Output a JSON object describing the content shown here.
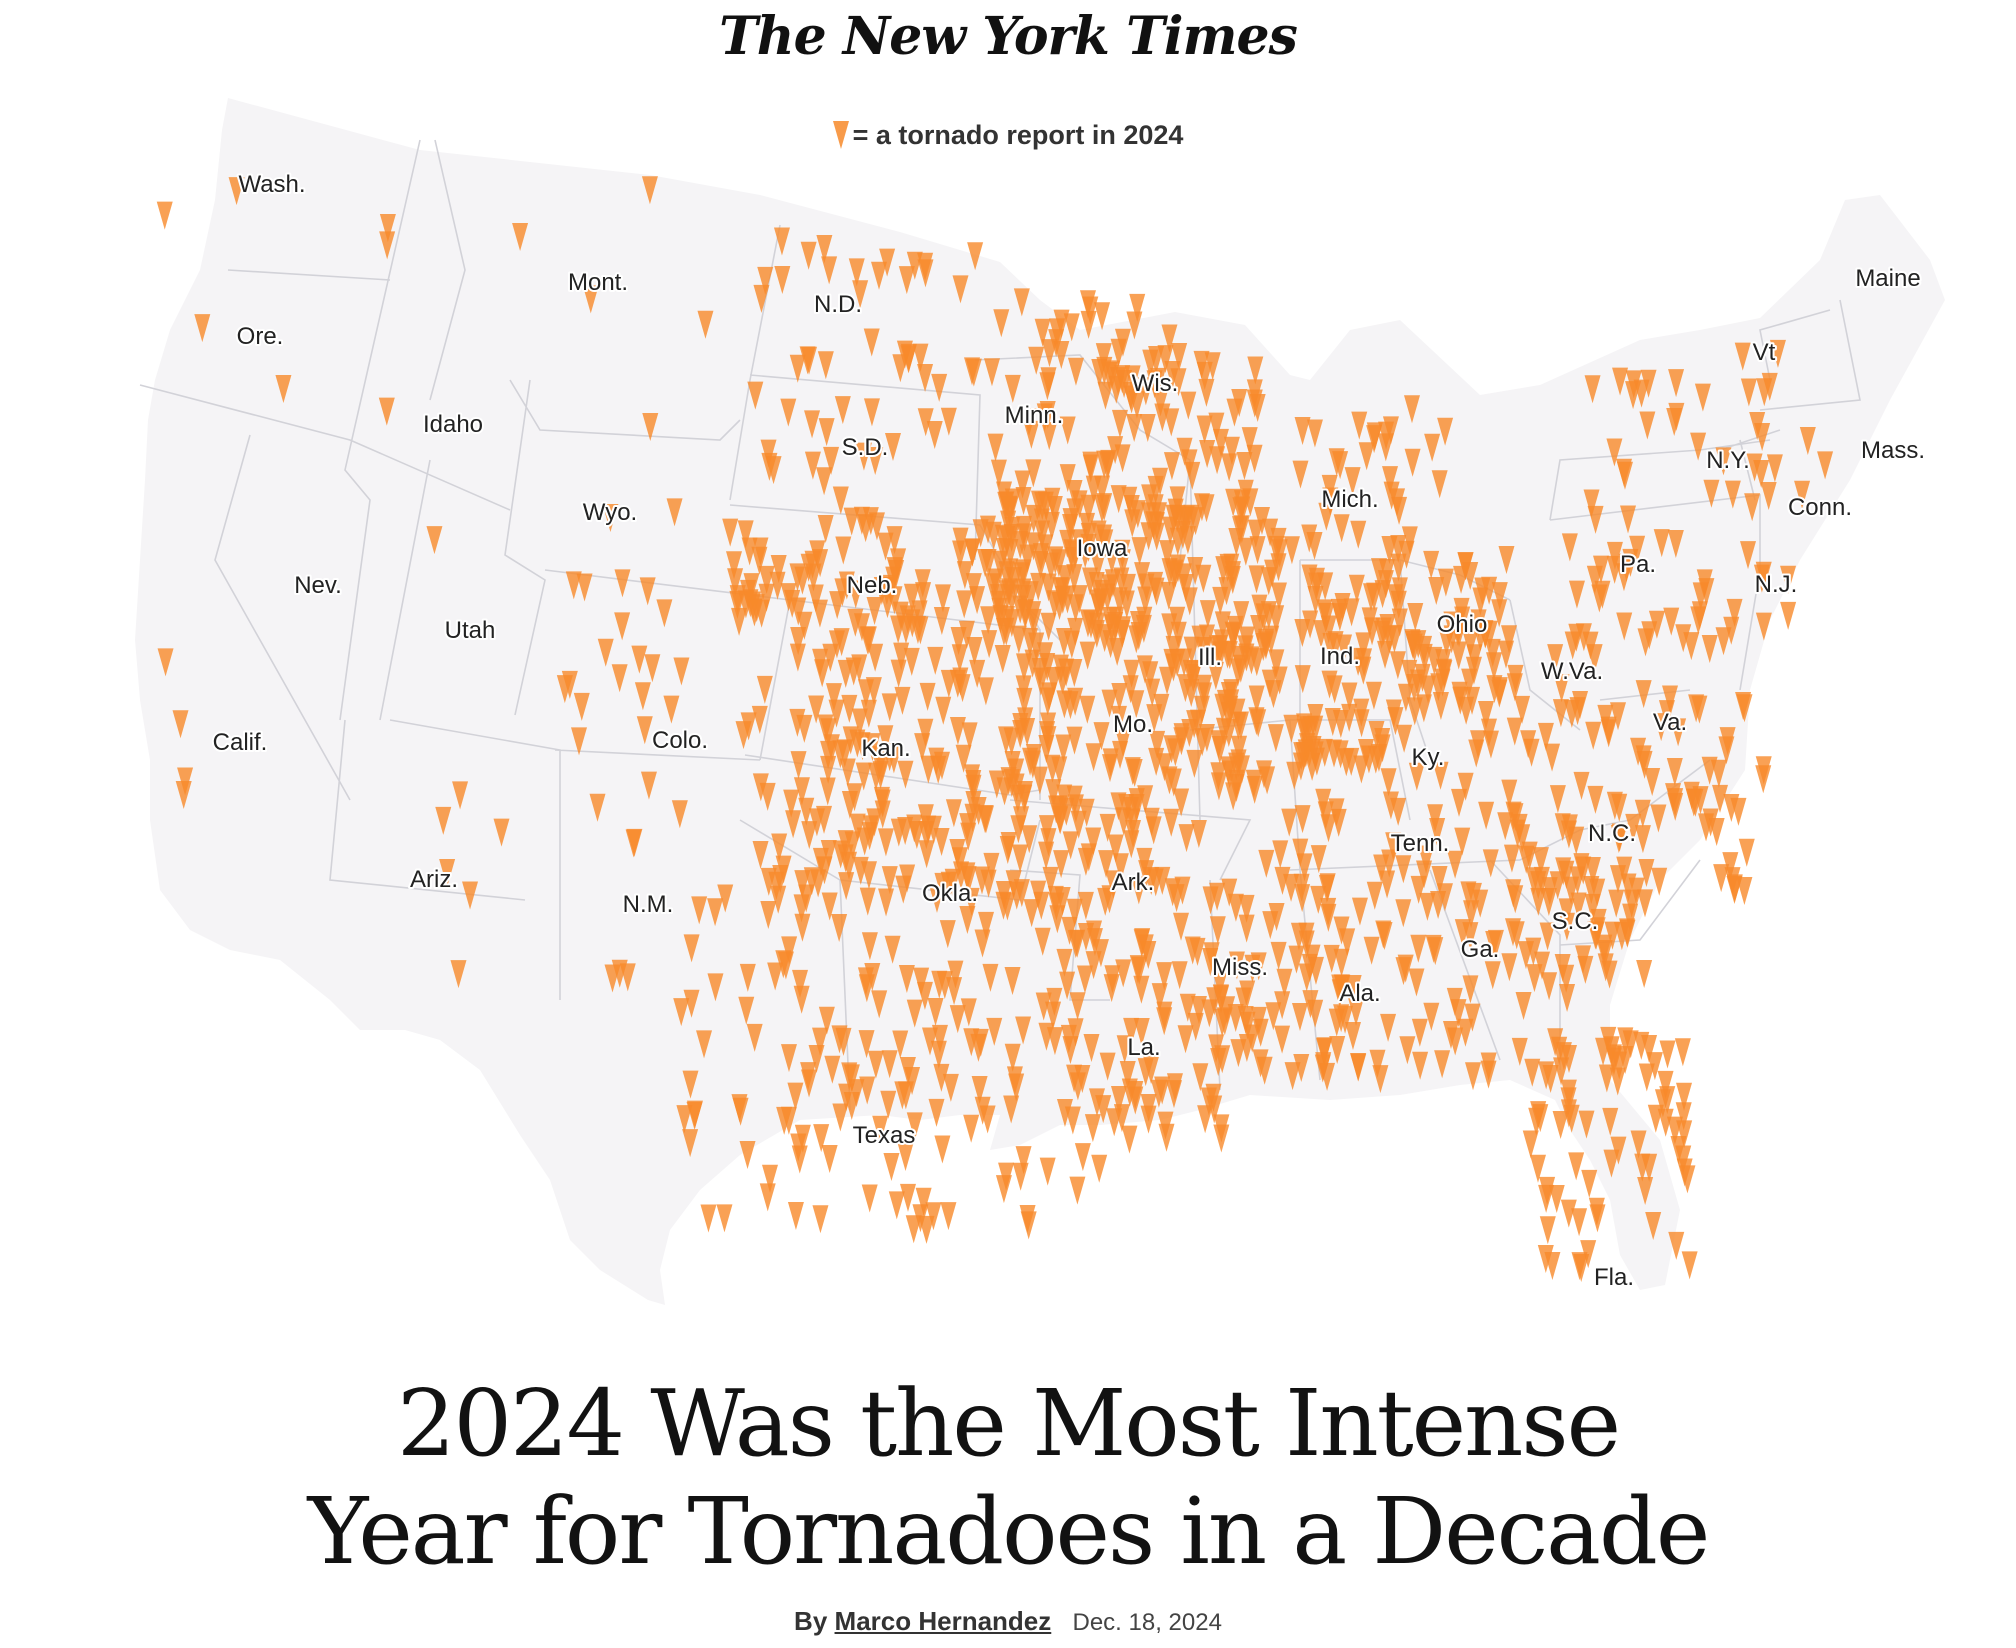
{
  "masthead": "The New York Times",
  "legend": {
    "text": "= a tornado report in 2024",
    "marker_icon": "tornado-marker-icon",
    "marker_color": "#f7892a"
  },
  "map": {
    "land_color": "#f5f4f6",
    "border_color": "#cfcfd4",
    "states": [
      {
        "name": "Wash."
      },
      {
        "name": "Ore."
      },
      {
        "name": "Calif."
      },
      {
        "name": "Nev."
      },
      {
        "name": "Idaho"
      },
      {
        "name": "Mont."
      },
      {
        "name": "Wyo."
      },
      {
        "name": "Utah"
      },
      {
        "name": "Ariz."
      },
      {
        "name": "Colo."
      },
      {
        "name": "N.M."
      },
      {
        "name": "N.D."
      },
      {
        "name": "S.D."
      },
      {
        "name": "Neb."
      },
      {
        "name": "Kan."
      },
      {
        "name": "Okla."
      },
      {
        "name": "Texas"
      },
      {
        "name": "Minn."
      },
      {
        "name": "Iowa"
      },
      {
        "name": "Mo."
      },
      {
        "name": "Ark."
      },
      {
        "name": "La."
      },
      {
        "name": "Wis."
      },
      {
        "name": "Ill."
      },
      {
        "name": "Mich."
      },
      {
        "name": "Ind."
      },
      {
        "name": "Ohio"
      },
      {
        "name": "Ky."
      },
      {
        "name": "Tenn."
      },
      {
        "name": "Miss."
      },
      {
        "name": "Ala."
      },
      {
        "name": "Ga."
      },
      {
        "name": "Fla."
      },
      {
        "name": "S.C."
      },
      {
        "name": "N.C."
      },
      {
        "name": "Va."
      },
      {
        "name": "W.Va."
      },
      {
        "name": "Pa."
      },
      {
        "name": "N.Y."
      },
      {
        "name": "N.J."
      },
      {
        "name": "Vt"
      },
      {
        "name": "Maine"
      },
      {
        "name": "Mass."
      },
      {
        "name": "Conn."
      }
    ],
    "tornado_density_by_state": {
      "Wash.": 4,
      "Ore.": 2,
      "Calif.": 4,
      "Nev.": 0,
      "Idaho": 1,
      "Mont.": 4,
      "Wyo.": 3,
      "Utah": 1,
      "Ariz.": 6,
      "Colo.": 25,
      "N.M.": 10,
      "N.D.": 30,
      "S.D.": 20,
      "Neb.": 90,
      "Kan.": 90,
      "Okla.": 110,
      "Texas": 150,
      "Minn.": 60,
      "Iowa": 130,
      "Mo.": 110,
      "Ark.": 60,
      "La.": 60,
      "Wis.": 50,
      "Ill.": 100,
      "Mich.": 35,
      "Ind.": 60,
      "Ohio": 70,
      "Ky.": 40,
      "Tenn.": 40,
      "Miss.": 50,
      "Ala.": 45,
      "Ga.": 45,
      "Fla.": 70,
      "S.C.": 35,
      "N.C.": 35,
      "Va.": 35,
      "W.Va.": 8,
      "Pa.": 35,
      "N.Y.": 30,
      "N.J.": 5,
      "Vt": 3,
      "Maine": 0,
      "Mass.": 2,
      "Conn.": 1
    }
  },
  "headline": {
    "line1": "2024 Was the Most Intense",
    "line2": "Year for Tornadoes in a Decade"
  },
  "byline": {
    "by": "By",
    "author": "Marco Hernandez",
    "date": "Dec. 18, 2024"
  }
}
